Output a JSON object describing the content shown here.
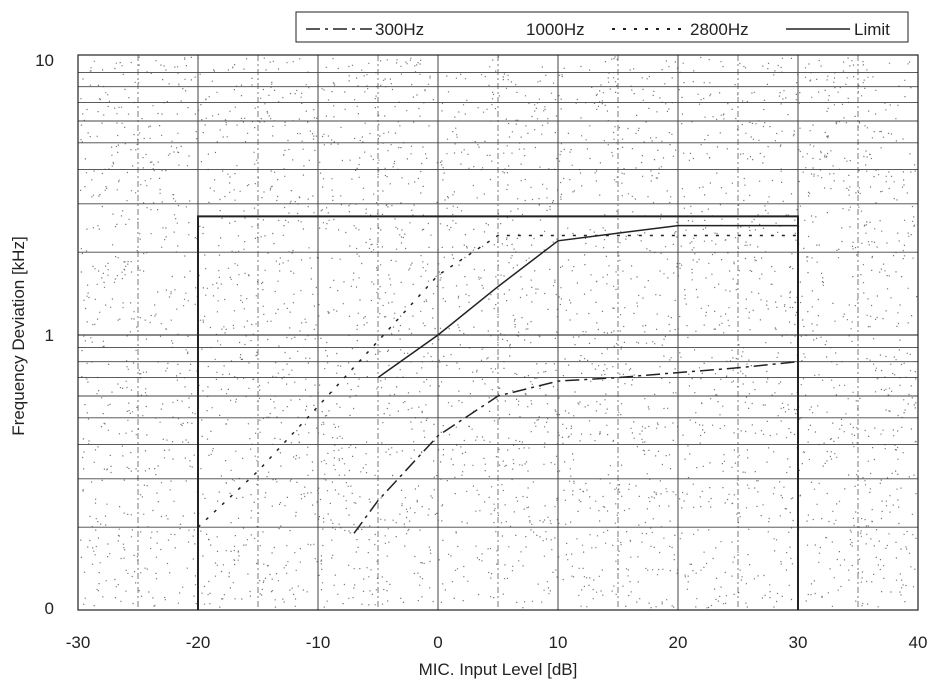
{
  "chart_data": {
    "type": "line",
    "xlabel": "MIC. Input Level [dB]",
    "ylabel": "Frequency Deviation [kHz]",
    "x_ticks": [
      "-30",
      "-20",
      "-10",
      "0",
      "10",
      "20",
      "30",
      "40"
    ],
    "y_ticks": [
      "0",
      "1",
      "10"
    ],
    "xlim": [
      -30,
      40
    ],
    "y_scale": "log",
    "grid": true,
    "legend_placement": "top",
    "series": [
      {
        "name": "300Hz",
        "style": "dash-dot",
        "color": "#222222",
        "x": [
          -7,
          -5,
          0,
          5,
          10,
          15,
          20,
          25,
          30
        ],
        "y": [
          0.19,
          0.25,
          0.43,
          0.6,
          0.68,
          0.7,
          0.73,
          0.76,
          0.8
        ]
      },
      {
        "name": "1000Hz",
        "style": "dash",
        "color": "#222222",
        "x": [
          -20,
          -15,
          -10,
          -5,
          0,
          5,
          10,
          20,
          30
        ],
        "y": [
          0.2,
          0.32,
          0.55,
          0.95,
          1.65,
          2.3,
          2.3,
          2.3,
          2.3
        ]
      },
      {
        "name": "2800Hz",
        "style": "dot",
        "color": "#222222",
        "x": [
          -5,
          0,
          5,
          10,
          20,
          30
        ],
        "y": [
          0.7,
          1.0,
          1.5,
          2.2,
          2.5,
          2.5
        ]
      },
      {
        "name": "Limit",
        "style": "solid",
        "color": "#222222",
        "x": [
          -20,
          -20,
          30,
          30
        ],
        "y": [
          0.1,
          2.7,
          2.7,
          0.1
        ]
      }
    ]
  },
  "legend": [
    {
      "label": "300Hz",
      "style": "dash-dot"
    },
    {
      "label": "1000Hz",
      "style": "dash"
    },
    {
      "label": "2800Hz",
      "style": "dot"
    },
    {
      "label": "Limit",
      "style": "solid"
    }
  ],
  "colors": {
    "line": "#222222",
    "grid": "#444444",
    "noise": "#777777"
  }
}
